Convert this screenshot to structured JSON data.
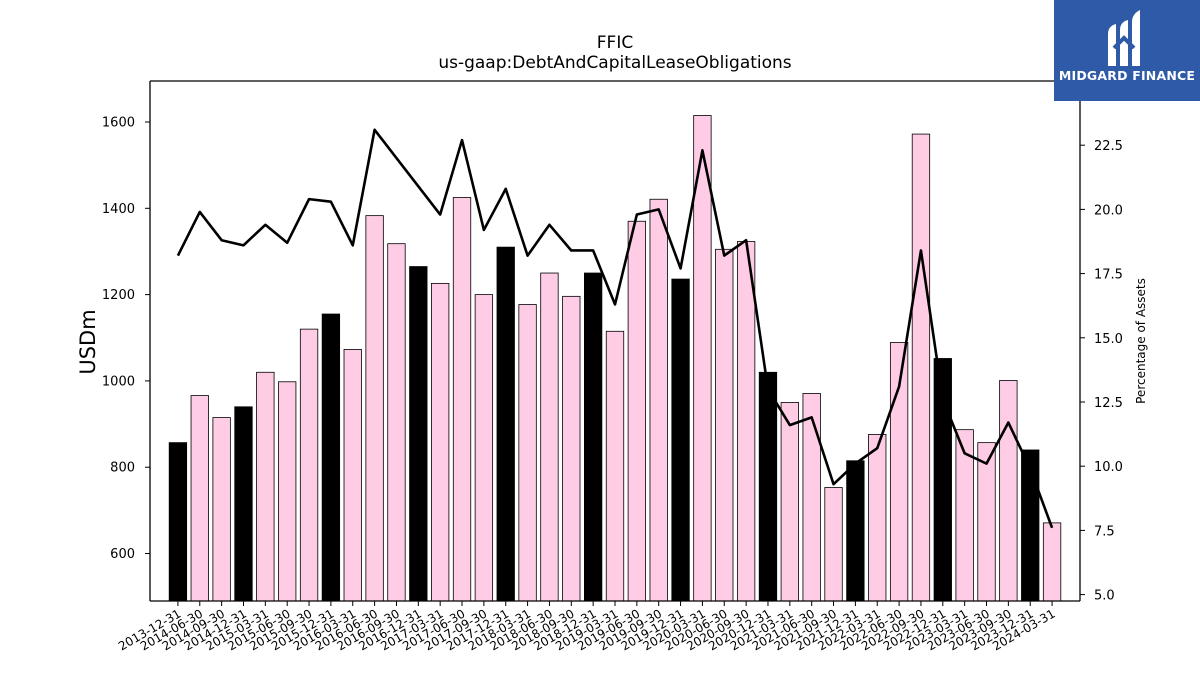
{
  "logo": {
    "text": "MIDGARD FINANCE",
    "color": "#2f5aa8"
  },
  "chart_data": {
    "type": "bar",
    "title": "FFIC",
    "subtitle": "us-gaap:DebtAndCapitalLeaseObligations",
    "ylabel": "USDm",
    "y2label": "Percentage of Assets",
    "ylim": [
      490,
      1695
    ],
    "y2lim": [
      4.75,
      25.0
    ],
    "yticks": [
      600,
      800,
      1000,
      1200,
      1400,
      1600
    ],
    "y2ticks": [
      5.0,
      7.5,
      10.0,
      12.5,
      15.0,
      17.5,
      20.0,
      22.5
    ],
    "y2tick_labels": [
      "5.0",
      "7.5",
      "10.0",
      "12.5",
      "15.0",
      "17.5",
      "20.0",
      "22.5"
    ],
    "grid": false,
    "categories": [
      "2013-12-31",
      "2014-06-30",
      "2014-09-30",
      "2014-12-31",
      "2015-03-31",
      "2015-06-30",
      "2015-09-30",
      "2015-12-31",
      "2016-03-31",
      "2016-06-30",
      "2016-09-30",
      "2016-12-31",
      "2017-03-31",
      "2017-06-30",
      "2017-09-30",
      "2017-12-31",
      "2018-03-31",
      "2018-06-30",
      "2018-09-30",
      "2018-12-31",
      "2019-03-31",
      "2019-06-30",
      "2019-09-30",
      "2019-12-31",
      "2020-03-31",
      "2020-06-30",
      "2020-09-30",
      "2020-12-31",
      "2021-03-31",
      "2021-06-30",
      "2021-09-30",
      "2021-12-31",
      "2022-03-31",
      "2022-06-30",
      "2022-09-30",
      "2022-12-31",
      "2023-03-31",
      "2023-06-30",
      "2023-09-30",
      "2023-12-31",
      "2024-03-31"
    ],
    "series": [
      {
        "type": "bar",
        "values": [
          857,
          966,
          915,
          940,
          1020,
          998,
          1120,
          1155,
          1073,
          1383,
          1318,
          1265,
          1226,
          1425,
          1200,
          1310,
          1177,
          1250,
          1196,
          1250,
          1115,
          1370,
          1421,
          1236,
          1615,
          1305,
          1323,
          1020,
          950,
          971,
          753,
          815,
          876,
          1089,
          1572,
          1052,
          887,
          857,
          1001,
          840,
          671
        ],
        "highlight": [
          true,
          false,
          false,
          true,
          false,
          false,
          false,
          true,
          false,
          false,
          false,
          true,
          false,
          false,
          false,
          true,
          false,
          false,
          false,
          true,
          false,
          false,
          false,
          true,
          false,
          false,
          false,
          true,
          false,
          false,
          false,
          true,
          false,
          false,
          false,
          true,
          false,
          false,
          false,
          true,
          false
        ],
        "color": "#ffcce6",
        "highlight_color": "#000000"
      },
      {
        "type": "line",
        "axis": "right",
        "values": [
          18.2,
          19.9,
          18.8,
          18.6,
          19.4,
          18.7,
          20.4,
          20.3,
          18.6,
          23.1,
          22.0,
          20.9,
          19.8,
          22.7,
          19.2,
          20.8,
          18.2,
          19.4,
          18.4,
          18.4,
          16.3,
          19.8,
          20.0,
          17.7,
          22.3,
          18.2,
          18.8,
          13.0,
          11.6,
          11.9,
          9.3,
          10.1,
          10.7,
          13.1,
          18.4,
          12.6,
          10.5,
          10.1,
          11.7,
          9.9,
          7.6
        ],
        "color": "#000000"
      }
    ]
  }
}
